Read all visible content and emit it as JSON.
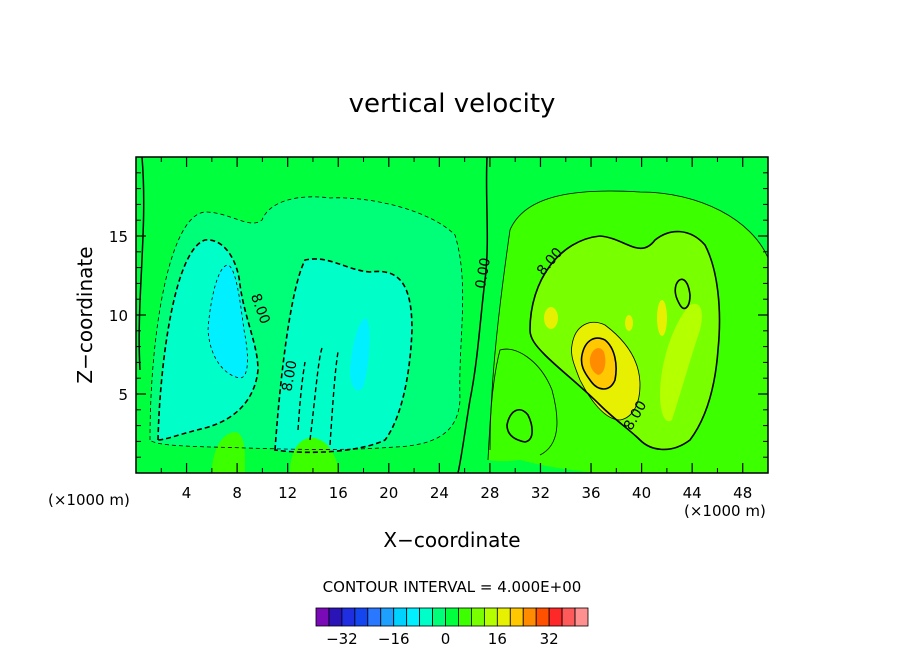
{
  "chart_data": {
    "type": "heatmap",
    "title": "vertical velocity",
    "xlabel": "X−coordinate",
    "ylabel": "Z−coordinate",
    "x_unit_left": "(×1000 m)",
    "x_unit_right": "(×1000 m)",
    "xlim": [
      0,
      50
    ],
    "ylim": [
      0,
      20
    ],
    "xticks": [
      4,
      8,
      12,
      16,
      20,
      24,
      28,
      32,
      36,
      40,
      44,
      48
    ],
    "yticks": [
      5,
      10,
      15
    ],
    "contour_interval_text": "CONTOUR INTERVAL = 4.000E+00",
    "contour_labels": [
      {
        "text": "8.00",
        "x": 9.5,
        "z": 10.3
      },
      {
        "text": "8.00",
        "x": 12.5,
        "z": 6.1
      },
      {
        "text": "0.00",
        "x": 27.8,
        "z": 12.6
      },
      {
        "text": "8.00",
        "x": 33.0,
        "z": 13.2
      },
      {
        "text": "8.00",
        "x": 39.8,
        "z": 3.5
      }
    ],
    "colorbar": {
      "levels": [
        -36,
        -32,
        -28,
        -24,
        -20,
        -16,
        -12,
        -8,
        -4,
        0,
        4,
        8,
        12,
        16,
        20,
        24,
        28,
        32,
        36
      ],
      "colors": [
        "#7a0ab8",
        "#2a14b8",
        "#1e2ee0",
        "#1446f0",
        "#2a78ff",
        "#1ea0ff",
        "#00d2ff",
        "#00f0ff",
        "#00ffc8",
        "#00ff78",
        "#00ff3c",
        "#3cff00",
        "#78ff00",
        "#b4ff00",
        "#e6f000",
        "#ffc800",
        "#ff8c00",
        "#ff5000",
        "#ff2828",
        "#ff5a5a",
        "#ff9090"
      ],
      "tick_labels": [
        "−32",
        "−16",
        "0",
        "16",
        "32"
      ]
    },
    "regions": [
      {
        "kind": "updraft",
        "x": 40.5,
        "z": 9,
        "peak": 24
      },
      {
        "kind": "downdraft",
        "x": 8,
        "z": 9,
        "peak": -16
      },
      {
        "kind": "downdraft",
        "x": 17,
        "z": 8,
        "peak": -12
      }
    ]
  }
}
